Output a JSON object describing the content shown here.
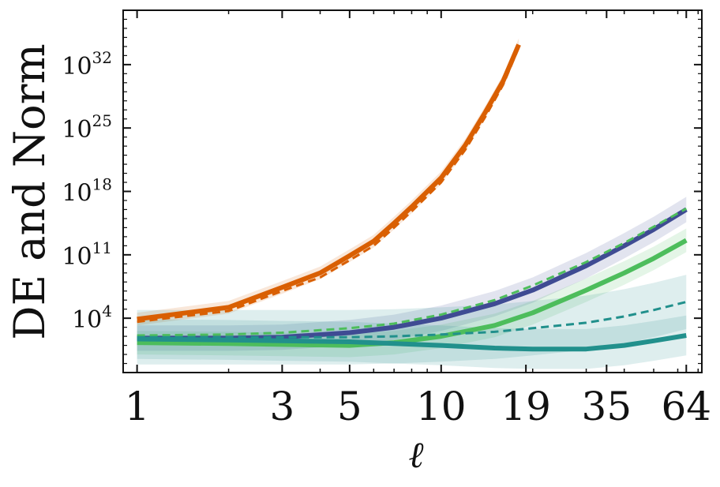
{
  "chart_data": {
    "type": "line",
    "title": "",
    "xlabel": "ℓ",
    "ylabel": "DE and Norm",
    "xscale": "log",
    "yscale": "log",
    "xlim": [
      0.9,
      72
    ],
    "ylim": [
      0.01,
      1e+38
    ],
    "grid": false,
    "legend": "none",
    "x_ticks": [
      1,
      3,
      5,
      10,
      19,
      35,
      64
    ],
    "x_tick_labels": [
      "1",
      "3",
      "5",
      "10",
      "19",
      "35",
      "64"
    ],
    "y_ticks": [
      4,
      11,
      18,
      25,
      32
    ],
    "y_tick_labels": [
      {
        "base": "10",
        "exp": "4"
      },
      {
        "base": "10",
        "exp": "11"
      },
      {
        "base": "10",
        "exp": "18"
      },
      {
        "base": "10",
        "exp": "25"
      },
      {
        "base": "10",
        "exp": "32"
      }
    ],
    "series": [
      {
        "color": "#d95f02",
        "style": "solid",
        "width": 6,
        "x": [
          1,
          2,
          3,
          4,
          5,
          6,
          7,
          8,
          10,
          12,
          14,
          16,
          18
        ],
        "log10_y": [
          3.9,
          5.2,
          7.4,
          9.0,
          10.9,
          12.5,
          14.5,
          16.3,
          19.5,
          23.1,
          26.8,
          30.2,
          34.2
        ],
        "band": 0.7
      },
      {
        "color": "#d95f02",
        "style": "dashed",
        "width": 3,
        "x": [
          1,
          2,
          3,
          4,
          5,
          6,
          7,
          8,
          10,
          12,
          14,
          16,
          18
        ],
        "log10_y": [
          3.6,
          4.8,
          7.0,
          8.5,
          10.4,
          12.0,
          14.0,
          15.8,
          19.0,
          22.6,
          26.3,
          29.8,
          33.9
        ]
      },
      {
        "color": "#3f4b93",
        "style": "solid",
        "width": 6,
        "x": [
          1,
          2,
          3,
          5,
          7,
          10,
          15,
          20,
          30,
          40,
          50,
          64
        ],
        "log10_y": [
          1.8,
          1.8,
          1.9,
          2.4,
          3.0,
          4.0,
          5.6,
          7.1,
          9.8,
          12.0,
          13.8,
          16.0
        ],
        "band": 1.4
      },
      {
        "color": "#4dbd5c",
        "style": "dashed",
        "width": 3,
        "x": [
          1,
          2,
          3,
          5,
          7,
          10,
          15,
          20,
          30,
          40,
          50,
          64
        ],
        "log10_y": [
          2.1,
          2.2,
          2.4,
          2.9,
          3.4,
          4.4,
          6.0,
          7.6,
          10.2,
          12.3,
          14.1,
          16.1
        ]
      },
      {
        "color": "#4dbd5c",
        "style": "solid",
        "width": 6,
        "x": [
          1,
          2,
          3,
          5,
          7,
          10,
          15,
          20,
          30,
          40,
          50,
          64
        ],
        "log10_y": [
          1.3,
          1.2,
          1.1,
          1.0,
          1.3,
          2.0,
          3.2,
          4.6,
          7.1,
          9.0,
          10.6,
          12.6
        ],
        "band": 1.3
      },
      {
        "color": "#21908c",
        "style": "dashed",
        "width": 3,
        "x": [
          1,
          2,
          3,
          5,
          7,
          10,
          15,
          20,
          30,
          40,
          50,
          64
        ],
        "log10_y": [
          1.9,
          1.9,
          1.9,
          1.9,
          2.0,
          2.2,
          2.5,
          2.9,
          3.5,
          4.2,
          4.9,
          5.8
        ],
        "band": 3.0
      },
      {
        "color": "#21908c",
        "style": "solid",
        "width": 6,
        "x": [
          1,
          2,
          3,
          5,
          7,
          10,
          15,
          20,
          30,
          40,
          50,
          64
        ],
        "log10_y": [
          1.7,
          1.6,
          1.5,
          1.4,
          1.2,
          1.0,
          0.7,
          0.6,
          0.6,
          1.0,
          1.5,
          2.1
        ],
        "band": 2.2
      }
    ]
  }
}
